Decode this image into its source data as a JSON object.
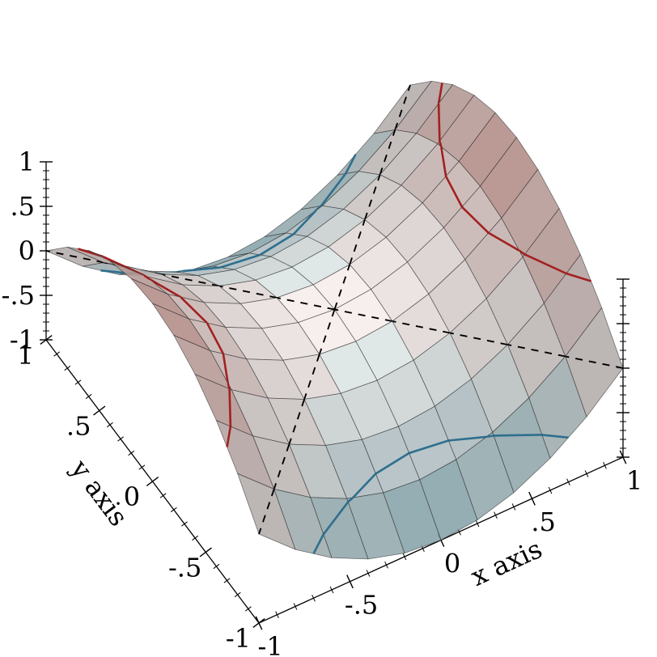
{
  "background": "#ffffff",
  "chart_data": {
    "type": "surface3d",
    "function": "z = x^2 - y^2",
    "x": [
      -1,
      -0.8,
      -0.6,
      -0.4,
      -0.2,
      0,
      0.2,
      0.4,
      0.6,
      0.8,
      1
    ],
    "y": [
      -1,
      -0.8,
      -0.6,
      -0.4,
      -0.2,
      0,
      0.2,
      0.4,
      0.6,
      0.8,
      1
    ],
    "z": [
      [
        0,
        -0.36,
        -0.64,
        -0.84,
        -0.96,
        -1,
        -0.96,
        -0.84,
        -0.64,
        -0.36,
        0
      ],
      [
        0.36,
        0,
        -0.28,
        -0.48,
        -0.6,
        -0.64,
        -0.6,
        -0.48,
        -0.28,
        0,
        0.36
      ],
      [
        0.64,
        0.28,
        0,
        -0.2,
        -0.32,
        -0.36,
        -0.32,
        -0.2,
        0,
        0.28,
        0.64
      ],
      [
        0.84,
        0.48,
        0.2,
        0,
        -0.12,
        -0.16,
        -0.12,
        0,
        0.2,
        0.48,
        0.84
      ],
      [
        0.96,
        0.6,
        0.32,
        0.12,
        0,
        -0.04,
        0,
        0.12,
        0.32,
        0.6,
        0.96
      ],
      [
        1,
        0.64,
        0.36,
        0.16,
        0.04,
        0,
        0.04,
        0.16,
        0.36,
        0.64,
        1
      ],
      [
        0.96,
        0.6,
        0.32,
        0.12,
        0,
        -0.04,
        0,
        0.12,
        0.32,
        0.6,
        0.96
      ],
      [
        0.84,
        0.48,
        0.2,
        0,
        -0.12,
        -0.16,
        -0.12,
        0,
        0.2,
        0.48,
        0.84
      ],
      [
        0.64,
        0.28,
        0,
        -0.2,
        -0.32,
        -0.36,
        -0.32,
        -0.2,
        0,
        0.28,
        0.64
      ],
      [
        0.36,
        0,
        -0.28,
        -0.48,
        -0.6,
        -0.64,
        -0.6,
        -0.48,
        -0.28,
        0,
        0.36
      ],
      [
        0,
        -0.36,
        -0.64,
        -0.84,
        -0.96,
        -1,
        -0.96,
        -0.84,
        -0.64,
        -0.36,
        0
      ]
    ],
    "z_range": [
      -1,
      1
    ],
    "axes": {
      "x": {
        "label": "x axis",
        "range": [
          -1,
          1
        ],
        "tick_values": [
          -1,
          -0.5,
          0,
          0.5,
          1
        ],
        "tick_labels": [
          "-1",
          "-.5",
          "0",
          ".5",
          "1"
        ],
        "minor_step": 0.1
      },
      "y": {
        "label": "y axis",
        "range": [
          -1,
          1
        ],
        "tick_values": [
          1,
          0.5,
          0,
          -0.5,
          -1
        ],
        "tick_labels": [
          "1",
          ".5",
          "0",
          "-.5",
          "-1"
        ],
        "minor_step": 0.1
      },
      "z": {
        "label": "",
        "range": [
          -1,
          1
        ],
        "tick_values": [
          1,
          0.5,
          0,
          -0.5,
          -1
        ],
        "tick_labels": [
          "1",
          ".5",
          "0",
          "-.5",
          "-1"
        ],
        "minor_step": 0.1
      }
    },
    "intervals": {
      "bounds": [
        -1,
        -0.75,
        -0.5,
        -0.25,
        0,
        0.25,
        0.5,
        0.75,
        1
      ],
      "colors": [
        "#aed4dd",
        "#c2dee4",
        "#d8eaed",
        "#edf5f5",
        "#faf1ef",
        "#f4deda",
        "#eec9c3",
        "#e8b7b0"
      ]
    },
    "contour_lines": [
      {
        "level": -0.5,
        "color": "#2e6f8e",
        "style": "solid",
        "width": 2.6
      },
      {
        "level": 0,
        "color": "#000000",
        "style": "dashed",
        "width": 1.9
      },
      {
        "level": 0.5,
        "color": "#a32020",
        "style": "solid",
        "width": 2.6
      }
    ],
    "mesh_color": "#222222",
    "grid": false,
    "legend_position": "none"
  }
}
